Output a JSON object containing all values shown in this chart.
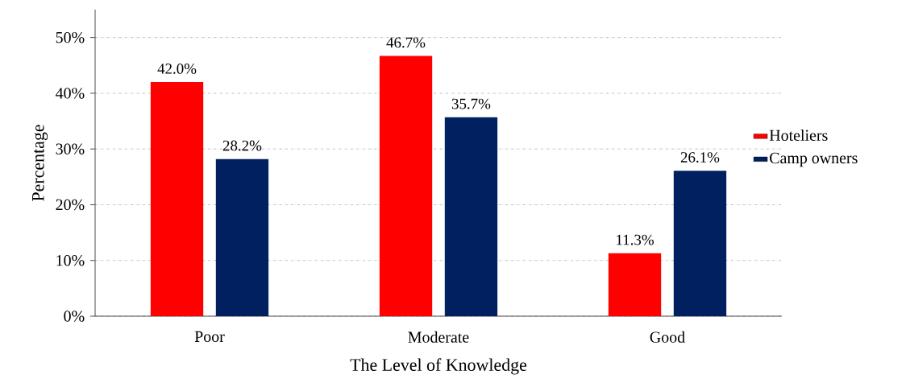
{
  "chart_data": {
    "type": "bar",
    "xlabel": "The Level of Knowledge",
    "ylabel": "Percentage",
    "categories": [
      "Poor",
      "Moderate",
      "Good"
    ],
    "series": [
      {
        "name": "Hoteliers",
        "color": "#ff0000",
        "values": [
          42.0,
          46.7,
          11.3
        ],
        "value_labels": [
          "42.0%",
          "46.7%",
          "11.3%"
        ]
      },
      {
        "name": "Camp owners",
        "color": "#002060",
        "values": [
          28.2,
          35.7,
          26.1
        ],
        "value_labels": [
          "28.2%",
          "35.7%",
          "26.1%"
        ]
      }
    ],
    "ylim": [
      0,
      55
    ],
    "yticks": [
      {
        "value": 0,
        "label": "0%"
      },
      {
        "value": 10,
        "label": "10%"
      },
      {
        "value": 20,
        "label": "20%"
      },
      {
        "value": 30,
        "label": "30%"
      },
      {
        "value": 40,
        "label": "40%"
      },
      {
        "value": 50,
        "label": "50%"
      }
    ],
    "grid": "y",
    "legend": "right"
  }
}
